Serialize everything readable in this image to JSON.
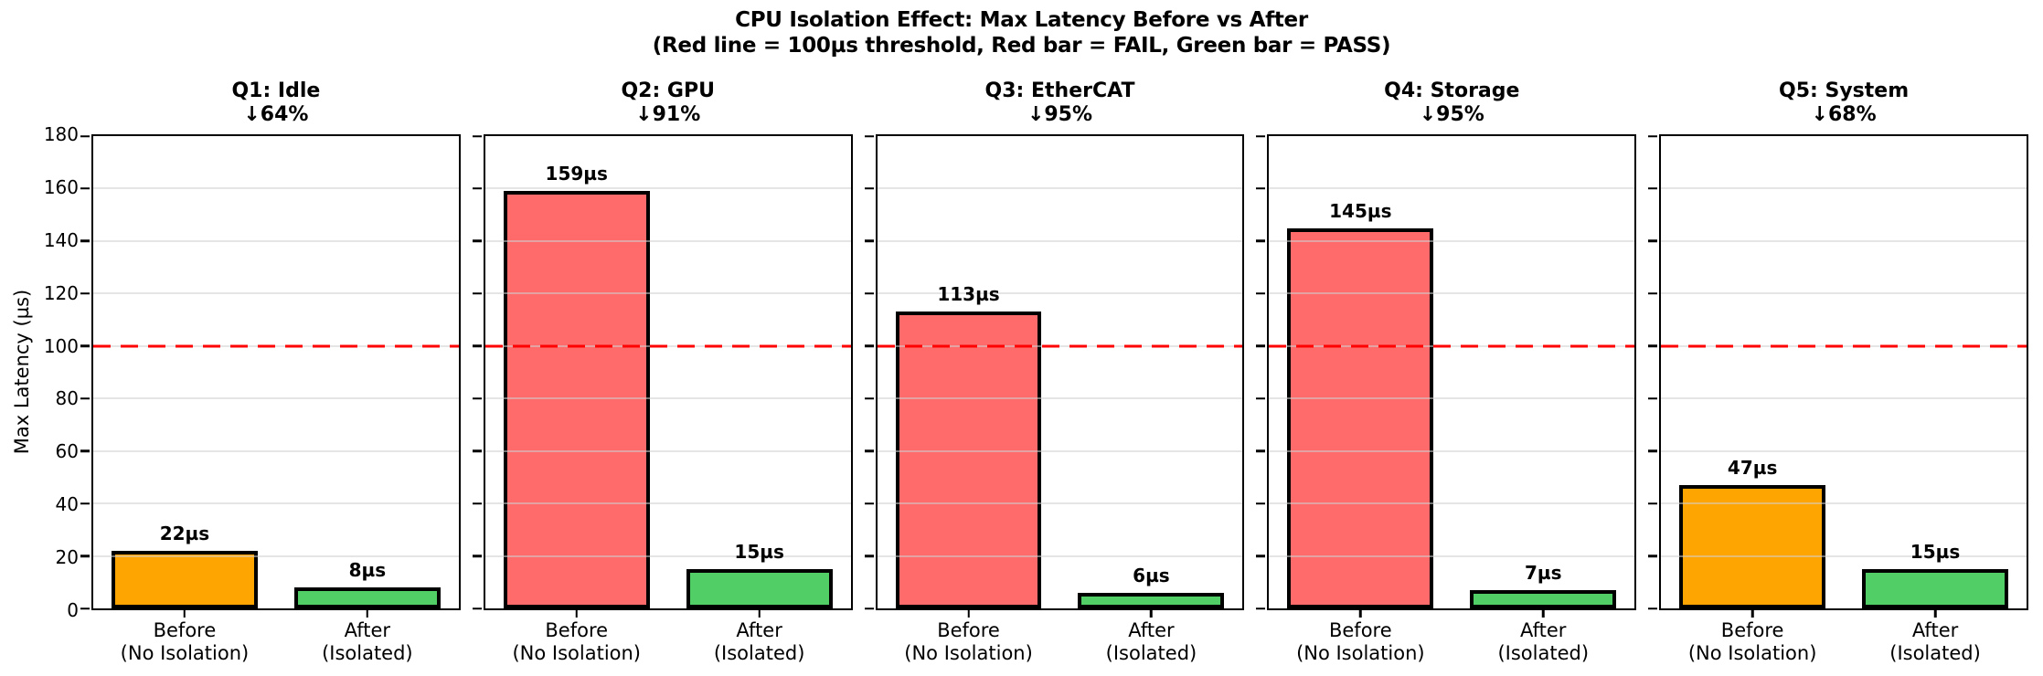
{
  "figure": {
    "title": "CPU Isolation Effect: Max Latency Before vs After",
    "subtitle": "(Red line = 100µs threshold, Red bar = FAIL, Green bar = PASS)"
  },
  "colors": {
    "fail_bar": "#ff6b6b",
    "pass_bar": "#51cf66",
    "warn_bar": "#ffa502",
    "threshold_line": "#ff0000",
    "bar_edge": "#000000",
    "spine": "#000000",
    "grid": "#d0d0d0"
  },
  "chart_data": {
    "type": "bar",
    "title": "CPU Isolation Effect: Max Latency Before vs After",
    "subtitle": "(Red line = 100µs threshold, Red bar = FAIL, Green bar = PASS)",
    "ylabel": "Max Latency (µs)",
    "xlabel": "",
    "ylim": [
      0,
      180
    ],
    "yticks": [
      0,
      20,
      40,
      60,
      80,
      100,
      120,
      140,
      160,
      180
    ],
    "grid": true,
    "legend_position": "none",
    "threshold": {
      "value": 100,
      "label": "100µs threshold",
      "color": "#ff0000",
      "style": "dashed"
    },
    "categories": [
      "Before\n(No Isolation)",
      "After\n(Isolated)"
    ],
    "panels": [
      {
        "title": "Q1: Idle",
        "reduction": "↓64%",
        "values": [
          22,
          8
        ],
        "value_labels": [
          "22µs",
          "8µs"
        ],
        "bar_colors": [
          "#ffa502",
          "#51cf66"
        ]
      },
      {
        "title": "Q2: GPU",
        "reduction": "↓91%",
        "values": [
          159,
          15
        ],
        "value_labels": [
          "159µs",
          "15µs"
        ],
        "bar_colors": [
          "#ff6b6b",
          "#51cf66"
        ]
      },
      {
        "title": "Q3: EtherCAT",
        "reduction": "↓95%",
        "values": [
          113,
          6
        ],
        "value_labels": [
          "113µs",
          "6µs"
        ],
        "bar_colors": [
          "#ff6b6b",
          "#51cf66"
        ]
      },
      {
        "title": "Q4: Storage",
        "reduction": "↓95%",
        "values": [
          145,
          7
        ],
        "value_labels": [
          "145µs",
          "7µs"
        ],
        "bar_colors": [
          "#ff6b6b",
          "#51cf66"
        ]
      },
      {
        "title": "Q5: System",
        "reduction": "↓68%",
        "values": [
          47,
          15
        ],
        "value_labels": [
          "47µs",
          "15µs"
        ],
        "bar_colors": [
          "#ffa502",
          "#51cf66"
        ]
      }
    ]
  }
}
